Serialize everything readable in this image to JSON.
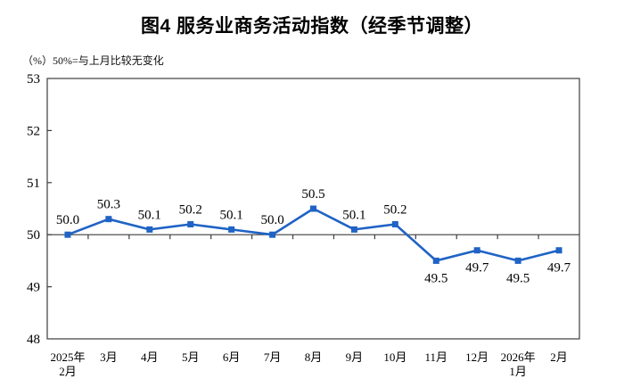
{
  "page": {
    "title": "图4 服务业商务活动指数（经季节调整）",
    "unit_note": "（%）50%=与上月比较无变化"
  },
  "chart_data": {
    "type": "line",
    "title": "图4 服务业商务活动指数（经季节调整）",
    "unit_note": "（%）50%=与上月比较无变化",
    "categories": [
      "2025年\n2月",
      "3月",
      "4月",
      "5月",
      "6月",
      "7月",
      "8月",
      "9月",
      "10月",
      "11月",
      "12月",
      "2026年\n1月",
      "2月"
    ],
    "values": [
      50.0,
      50.3,
      50.1,
      50.2,
      50.1,
      50.0,
      50.5,
      50.1,
      50.2,
      49.5,
      49.7,
      49.5,
      49.7
    ],
    "xlabel": "",
    "ylabel": "%",
    "ylim": [
      48,
      53
    ],
    "yticks": [
      48,
      49,
      50,
      51,
      52,
      53
    ],
    "reference_line": 50,
    "data_labels": true,
    "grid": false,
    "legend": "none",
    "colors": {
      "line": "#1F63C5",
      "marker": "#1F63C5",
      "axis": "#3d3d3d",
      "label_text": "#000000"
    }
  }
}
